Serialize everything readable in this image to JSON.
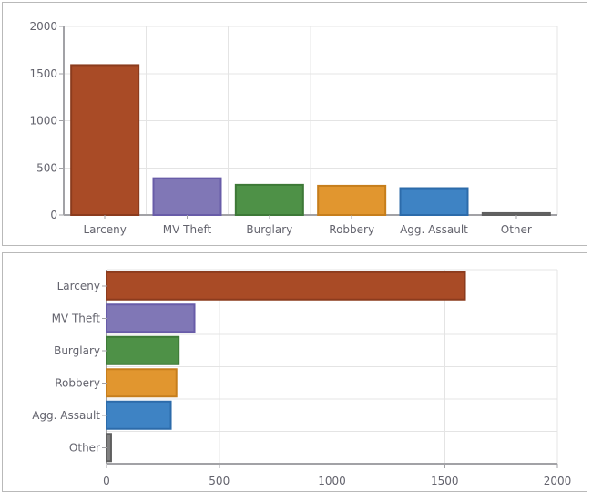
{
  "chart_data": [
    {
      "type": "bar",
      "orientation": "vertical",
      "title": "",
      "xlabel": "",
      "ylabel": "",
      "categories": [
        "Larceny",
        "MV Theft",
        "Burglary",
        "Robbery",
        "Agg. Assault",
        "Other"
      ],
      "values": [
        1590,
        390,
        320,
        310,
        285,
        20
      ],
      "ylim": [
        0,
        2000
      ],
      "yticks": [
        0,
        500,
        1000,
        1500,
        2000
      ],
      "ytick_labels": [
        "0",
        "500",
        "1000",
        "1500",
        "2000"
      ],
      "grid": true,
      "legend": "none",
      "bar_fill_colors": [
        "#A94B26",
        "#8077B6",
        "#4E9147",
        "#E1962F",
        "#3E83C4",
        "#808080"
      ],
      "bar_border_colors": [
        "#8B3B1D",
        "#685CA8",
        "#3D7937",
        "#C67E1C",
        "#2C6BAA",
        "#5F5F5F"
      ]
    },
    {
      "type": "bar",
      "orientation": "horizontal",
      "title": "",
      "xlabel": "",
      "ylabel": "",
      "categories": [
        "Larceny",
        "MV Theft",
        "Burglary",
        "Robbery",
        "Agg. Assault",
        "Other"
      ],
      "values": [
        1590,
        390,
        320,
        310,
        285,
        20
      ],
      "xlim": [
        0,
        2000
      ],
      "xticks": [
        0,
        500,
        1000,
        1500,
        2000
      ],
      "xtick_labels": [
        "0",
        "500",
        "1000",
        "1500",
        "2000"
      ],
      "grid": true,
      "legend": "none",
      "bar_fill_colors": [
        "#A94B26",
        "#8077B6",
        "#4E9147",
        "#E1962F",
        "#3E83C4",
        "#808080"
      ],
      "bar_border_colors": [
        "#8B3B1D",
        "#685CA8",
        "#3D7937",
        "#C67E1C",
        "#2C6BAA",
        "#5F5F5F"
      ]
    }
  ],
  "style": {
    "label_color": "#63636D",
    "axis_color": "#A2A2A6",
    "grid_color": "#E4E4E4",
    "panel_border_color": "#B9B9B9",
    "background_color": "#FFFFFF"
  }
}
